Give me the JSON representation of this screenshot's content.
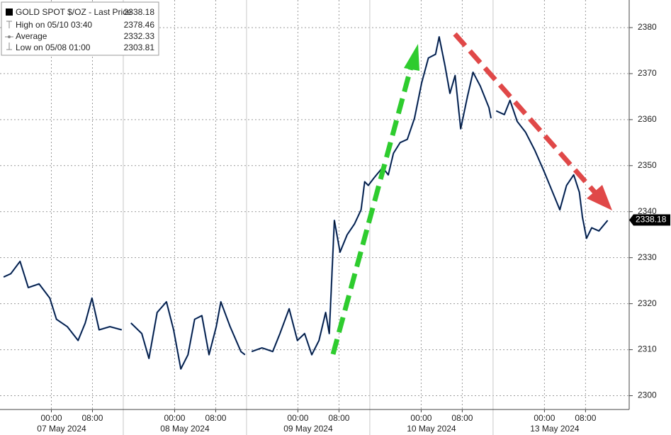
{
  "chart_data": {
    "type": "line",
    "legend": [
      {
        "label": "GOLD SPOT $/OZ - Last Price",
        "value": 2338.18
      },
      {
        "label": "High on 05/10 03:40",
        "value": 2378.46
      },
      {
        "label": "Average",
        "value": 2332.33
      },
      {
        "label": "Low on 05/08 01:00",
        "value": 2303.81
      }
    ],
    "x": [
      0.7,
      2.1,
      3.9,
      5.5,
      7.6,
      9.7,
      11,
      13.1,
      15.2,
      16.6,
      17.9,
      19.3,
      21.4,
      23.7,
      24,
      25.5,
      27.6,
      29,
      30.6,
      32.4,
      33.8,
      35.2,
      36.6,
      37.9,
      39.3,
      40.7,
      42.1,
      43,
      44.8,
      46.9,
      47.7,
      48,
      49,
      51,
      53.1,
      54.5,
      56.3,
      57.9,
      59.3,
      60.7,
      62.1,
      63.4,
      64.1,
      65.1,
      66.2,
      67.6,
      69,
      70.3,
      71,
      71.7,
      72.8,
      74.5,
      75.6,
      76.6,
      77.9,
      79.3,
      80.7,
      82.1,
      83.4,
      84.8,
      85.5,
      86.6,
      87.6,
      88.6,
      89.7,
      91,
      92.1,
      93.5,
      95.2,
      95.6,
      96.2,
      96.6,
      98.2,
      99.3,
      100.7,
      102.3,
      104.1,
      105.9,
      107.6,
      109,
      110.3,
      111.7,
      112.8,
      113.4,
      114.2,
      115.2,
      116.6,
      118.3
    ],
    "series": [
      {
        "name": "GOLD SPOT $/OZ",
        "color": "#1f4e99",
        "values": [
          2325.8,
          2326.5,
          2329.2,
          2323.5,
          2324.3,
          2321.2,
          2316.6,
          2315,
          2312,
          2315.8,
          2321.2,
          2314.3,
          2315,
          2314.3,
          null,
          2315.8,
          2313.5,
          2308.1,
          2318.1,
          2320.4,
          2314.3,
          2305.8,
          2308.9,
          2316.6,
          2317.4,
          2308.9,
          2315,
          2320.4,
          2315,
          2309.6,
          2308.9,
          null,
          2309.6,
          2310.4,
          2309.6,
          2313.5,
          2318.9,
          2312,
          2313.5,
          2308.9,
          2312,
          2318.1,
          2313.5,
          2338.1,
          2331.2,
          2335,
          2337.3,
          2340.4,
          2346.5,
          2345.7,
          2347.3,
          2349.6,
          2348,
          2352.7,
          2355,
          2355.7,
          2360.3,
          2368,
          2373.4,
          2374.2,
          2378,
          2371.9,
          2365.7,
          2369.6,
          2358,
          2365,
          2370.3,
          2367.3,
          2362.6,
          2360.3,
          null,
          2361.9,
          2361.1,
          2364.2,
          2359.6,
          2357.3,
          2353.4,
          2348.8,
          2344.2,
          2340.4,
          2345.7,
          2348,
          2344.2,
          2338.8,
          2334.2,
          2336.5,
          2335.8,
          2338.1
        ]
      }
    ],
    "xlim": [
      0,
      122.5
    ],
    "ylim": [
      2297,
      2386
    ],
    "yticks": [
      2300,
      2310,
      2320,
      2330,
      2340,
      2350,
      2360,
      2370,
      2380
    ],
    "xticks": [
      {
        "value": 10,
        "label": "00:00"
      },
      {
        "value": 18,
        "label": "08:00"
      },
      {
        "value": 34,
        "label": "00:00"
      },
      {
        "value": 42,
        "label": "08:00"
      },
      {
        "value": 58,
        "label": "00:00"
      },
      {
        "value": 66,
        "label": "08:00"
      },
      {
        "value": 82,
        "label": "00:00"
      },
      {
        "value": 90,
        "label": "08:00"
      },
      {
        "value": 106,
        "label": "00:00"
      },
      {
        "value": 114,
        "label": "08:00"
      }
    ],
    "day_labels": [
      {
        "value": 12,
        "label": "07 May 2024"
      },
      {
        "value": 36,
        "label": "08 May 2024"
      },
      {
        "value": 60,
        "label": "09 May 2024"
      },
      {
        "value": 84,
        "label": "10 May 2024"
      },
      {
        "value": 108,
        "label": "13 May 2024"
      }
    ],
    "session_breaks": [
      24,
      48,
      72,
      96
    ],
    "grid": true
  }
}
